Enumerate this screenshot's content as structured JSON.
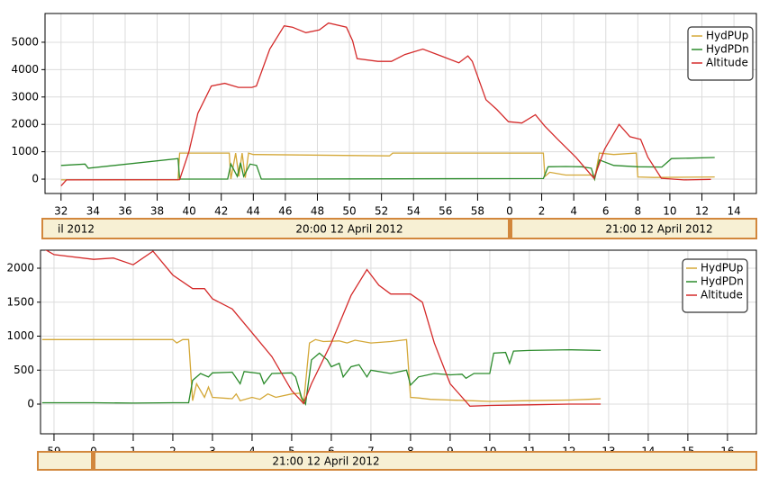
{
  "chart_data": [
    {
      "type": "line",
      "xlim": [
        -29,
        15.4
      ],
      "ylim": [
        -525,
        6050
      ],
      "xticks": [
        {
          "value": -28,
          "label": "32"
        },
        {
          "value": -26,
          "label": "34"
        },
        {
          "value": -24,
          "label": "36"
        },
        {
          "value": -22,
          "label": "38"
        },
        {
          "value": -20,
          "label": "40"
        },
        {
          "value": -18,
          "label": "42"
        },
        {
          "value": -16,
          "label": "44"
        },
        {
          "value": -14,
          "label": "46"
        },
        {
          "value": -12,
          "label": "48"
        },
        {
          "value": -10,
          "label": "50"
        },
        {
          "value": -8,
          "label": "52"
        },
        {
          "value": -6,
          "label": "54"
        },
        {
          "value": -4,
          "label": "56"
        },
        {
          "value": -2,
          "label": "58"
        },
        0,
        2,
        4,
        6,
        8,
        10,
        12,
        14
      ],
      "yticks": [
        0,
        1000,
        2000,
        3000,
        4000,
        5000
      ],
      "grid": true,
      "legend": "upper right",
      "timeline_labels": [
        "il 2012",
        "20:00 12 April 2012",
        "21:00 12 April 2012"
      ],
      "series": [
        {
          "name": "HydPUp",
          "color": "#d4a838",
          "x": [
            -28,
            -20.7,
            -20.6,
            -17.5,
            -17.4,
            -17.1,
            -16.9,
            -16.7,
            -16.5,
            -16.3,
            -16.0,
            -15.8,
            -7.5,
            -7.3,
            2.1,
            2.2,
            2.5,
            3.5,
            4.5,
            5.2,
            5.3,
            5.6,
            6.5,
            7.9,
            8.0,
            9.0,
            12.8
          ],
          "values": [
            -30,
            -30,
            950,
            950,
            0,
            950,
            100,
            950,
            50,
            950,
            900,
            900,
            850,
            950,
            950,
            100,
            250,
            150,
            150,
            150,
            0,
            950,
            900,
            950,
            80,
            60,
            80
          ]
        },
        {
          "name": "HydPDn",
          "color": "#2a8a2a",
          "x": [
            -28,
            -26.5,
            -26.3,
            -20.7,
            -20.6,
            -17.6,
            -17.4,
            -17.0,
            -16.8,
            -16.6,
            -16.2,
            -15.8,
            -15.5,
            2.1,
            2.4,
            3.5,
            4.5,
            5.1,
            5.3,
            5.6,
            6.5,
            8.0,
            9.5,
            10.1,
            12.8
          ],
          "values": [
            500,
            550,
            400,
            750,
            0,
            0,
            550,
            100,
            600,
            100,
            550,
            500,
            0,
            20,
            450,
            460,
            450,
            400,
            0,
            700,
            500,
            450,
            440,
            750,
            790
          ]
        },
        {
          "name": "Altitude",
          "color": "#d42a2a",
          "x": [
            -28,
            -27.66,
            -20.6,
            -20.02,
            -19.46,
            -18.62,
            -17.78,
            -16.93,
            -16.09,
            -15.81,
            -14.97,
            -14.07,
            -13.56,
            -12.72,
            -11.88,
            -11.31,
            -10.19,
            -9.8,
            -9.52,
            -8.22,
            -7.38,
            -6.54,
            -5.42,
            -4.29,
            -3.17,
            -2.61,
            -2.33,
            -1.48,
            -0.81,
            -0.08,
            0.76,
            1.61,
            2.17,
            3.01,
            4.13,
            5.26,
            5.93,
            6.83,
            7.51,
            8.18,
            8.63,
            9.47,
            10.88,
            12.56
          ],
          "values": [
            -250,
            -30,
            -20,
            1000,
            2400,
            3400,
            3500,
            3350,
            3350,
            3400,
            4750,
            5600,
            5550,
            5350,
            5450,
            5700,
            5550,
            5050,
            4400,
            4300,
            4300,
            4550,
            4750,
            4500,
            4250,
            4500,
            4300,
            2900,
            2550,
            2100,
            2050,
            2350,
            1950,
            1450,
            800,
            30,
            1100,
            2000,
            1550,
            1450,
            800,
            30,
            -30,
            -10
          ]
        }
      ]
    },
    {
      "type": "line",
      "xlim": [
        -1.34,
        16.73
      ],
      "ylim": [
        -437,
        2265
      ],
      "xticks": [
        {
          "value": -1,
          "label": "59"
        },
        0,
        1,
        2,
        3,
        4,
        5,
        6,
        7,
        8,
        9,
        10,
        11,
        12,
        13,
        14,
        15,
        16
      ],
      "yticks": [
        0,
        500,
        1000,
        1500,
        2000
      ],
      "grid": true,
      "legend": "upper right",
      "timeline_labels": [
        "21:00 12 April 2012"
      ],
      "series": [
        {
          "name": "HydPUp",
          "color": "#d4a838",
          "x": [
            -1.3,
            2.0,
            2.1,
            2.25,
            2.4,
            2.5,
            2.6,
            2.8,
            2.9,
            3.0,
            3.5,
            3.6,
            3.7,
            4.0,
            4.2,
            4.4,
            4.6,
            5.0,
            5.2,
            5.3,
            5.45,
            5.6,
            5.8,
            6.2,
            6.4,
            6.6,
            7.0,
            7.5,
            7.9,
            8.0,
            8.2,
            8.5,
            9.0,
            9.5,
            10,
            11,
            12,
            12.5,
            12.8
          ],
          "values": [
            950,
            950,
            900,
            950,
            950,
            50,
            300,
            100,
            250,
            100,
            80,
            150,
            50,
            100,
            70,
            150,
            100,
            150,
            160,
            0,
            900,
            950,
            920,
            930,
            900,
            940,
            900,
            920,
            950,
            100,
            90,
            70,
            60,
            50,
            40,
            50,
            60,
            70,
            80
          ]
        },
        {
          "name": "HydPDn",
          "color": "#2a8a2a",
          "x": [
            -1.3,
            0,
            1,
            2,
            2.4,
            2.5,
            2.7,
            2.9,
            3.0,
            3.5,
            3.7,
            3.8,
            4.2,
            4.3,
            4.5,
            5.0,
            5.1,
            5.25,
            5.35,
            5.5,
            5.7,
            5.9,
            6.0,
            6.2,
            6.3,
            6.5,
            6.7,
            6.9,
            7.0,
            7.5,
            7.9,
            8.0,
            8.2,
            8.6,
            9.0,
            9.3,
            9.4,
            9.6,
            10,
            10.1,
            10.4,
            10.5,
            10.6,
            11,
            12,
            12.8
          ],
          "values": [
            20,
            20,
            15,
            20,
            20,
            350,
            450,
            400,
            460,
            470,
            300,
            480,
            450,
            300,
            450,
            460,
            400,
            100,
            0,
            650,
            750,
            650,
            550,
            600,
            400,
            550,
            580,
            400,
            500,
            450,
            500,
            280,
            400,
            450,
            430,
            440,
            380,
            450,
            450,
            750,
            760,
            600,
            780,
            790,
            800,
            790
          ]
        },
        {
          "name": "Altitude",
          "color": "#d42a2a",
          "x": [
            -1.3,
            -1.0,
            0,
            0.5,
            1.0,
            1.5,
            2.0,
            2.5,
            2.8,
            3.0,
            3.5,
            4.0,
            4.5,
            5.0,
            5.3,
            5.5,
            6.0,
            6.5,
            6.9,
            7.2,
            7.5,
            8.0,
            8.3,
            8.6,
            9.0,
            9.5,
            10,
            11,
            12,
            12.8
          ],
          "values": [
            2300,
            2200,
            2130,
            2150,
            2050,
            2250,
            1900,
            1700,
            1700,
            1550,
            1400,
            1050,
            700,
            200,
            10,
            300,
            900,
            1600,
            1980,
            1750,
            1620,
            1620,
            1500,
            900,
            300,
            -30,
            -20,
            -10,
            0,
            0
          ]
        }
      ]
    }
  ]
}
